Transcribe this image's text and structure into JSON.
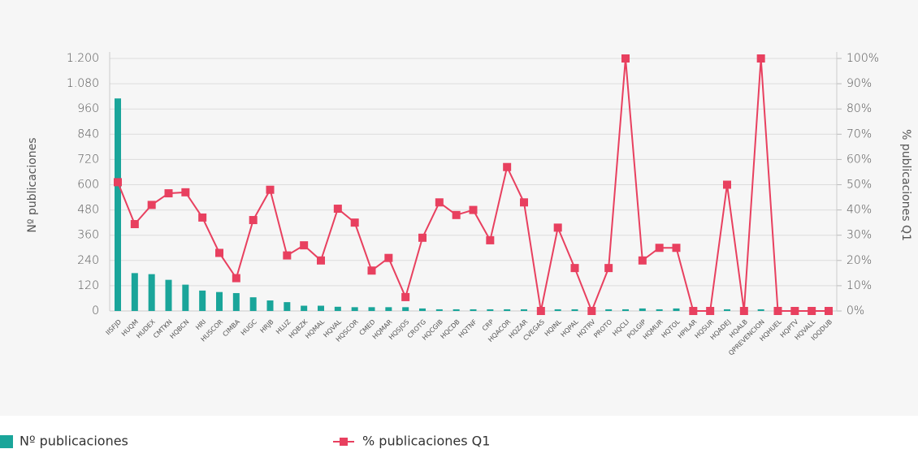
{
  "chart_data": {
    "type": "bar-line",
    "categories": [
      "IISFJD",
      "HUQM",
      "HUDEX",
      "CMTKN",
      "HQBCN",
      "HRI",
      "HUSCOR",
      "CIMBA",
      "HUGC",
      "HRJB",
      "HLUZ",
      "HQBZK",
      "HQMAL",
      "HQVAL",
      "HQSCOR",
      "CMED",
      "HQMAR",
      "HQSJOS",
      "CROTG",
      "HQCGIB",
      "HQCDB",
      "HQTNF",
      "CRP",
      "HQACOR",
      "HQZAR",
      "CVEGAS",
      "HQINL",
      "HQPAL",
      "HQTRV",
      "PROTO",
      "HQCLI",
      "POLGIP",
      "HQMUR",
      "HQTOL",
      "HPILAR",
      "HQSUR",
      "HQADEJ",
      "HQALB",
      "QPREVENCION",
      "HQHUEL",
      "HQPTV",
      "HQVALL",
      "IOQDUB"
    ],
    "series": [
      {
        "name": "Nº publicaciones",
        "color": "#1aa59a",
        "type": "bar",
        "values": [
          1010,
          180,
          175,
          148,
          125,
          97,
          90,
          85,
          65,
          50,
          42,
          25,
          25,
          20,
          18,
          18,
          18,
          18,
          12,
          8,
          8,
          8,
          8,
          8,
          8,
          5,
          8,
          8,
          5,
          8,
          8,
          12,
          8,
          12,
          5,
          5,
          8,
          5,
          8,
          3,
          3,
          3,
          2
        ]
      },
      {
        "name": "% publicaciones Q1",
        "color": "#e8405f",
        "type": "line",
        "axis": "y2",
        "values": [
          51,
          34.4,
          42,
          46.6,
          47,
          37,
          23,
          13,
          36,
          48,
          22,
          26,
          20,
          40.5,
          35,
          16,
          21,
          5.5,
          29,
          43,
          38,
          40,
          28,
          57,
          43,
          0,
          33,
          17,
          0,
          17,
          100,
          20,
          25,
          25,
          0,
          0,
          50,
          0,
          100,
          0,
          0,
          0,
          0
        ]
      }
    ],
    "ylabel": "Nº publicaciones",
    "y2label": "% publicaciones Q1",
    "ylim": [
      0,
      1200
    ],
    "yticks": [
      0,
      120,
      240,
      360,
      480,
      600,
      720,
      840,
      960,
      {
        "value": 1080,
        "label": "1.080"
      },
      {
        "value": 1200,
        "label": "1.200"
      }
    ],
    "y2lim": [
      0,
      100
    ],
    "y2ticks": [
      {
        "value": 0,
        "label": "0%"
      },
      {
        "value": 10,
        "label": "10%"
      },
      {
        "value": 20,
        "label": "20%"
      },
      {
        "value": 30,
        "label": "30%"
      },
      {
        "value": 40,
        "label": "40%"
      },
      {
        "value": 50,
        "label": "50%"
      },
      {
        "value": 60,
        "label": "60%"
      },
      {
        "value": 70,
        "label": "70%"
      },
      {
        "value": 80,
        "label": "80%"
      },
      {
        "value": 90,
        "label": "90%"
      },
      {
        "value": 100,
        "label": "100%"
      }
    ],
    "grid": true
  }
}
